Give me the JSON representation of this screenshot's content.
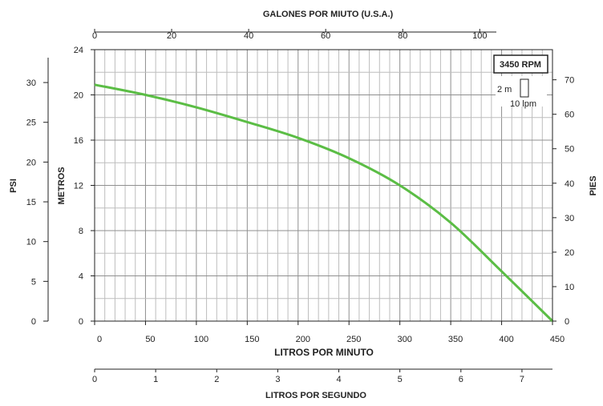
{
  "chart_data": {
    "type": "line",
    "title": "",
    "x": [
      0,
      50,
      100,
      150,
      200,
      250,
      300,
      350,
      400,
      450
    ],
    "series": [
      {
        "values": [
          20.9,
          20.0,
          18.9,
          17.6,
          16.2,
          14.4,
          12.0,
          8.7,
          4.4,
          0.0
        ]
      }
    ],
    "xlabel": "LITROS POR MINUTO",
    "ylabel": "METROS",
    "xlim": [
      0,
      450
    ],
    "ylim": [
      0,
      24
    ],
    "x_ticks": [
      "0",
      "50",
      "100",
      "150",
      "200",
      "250",
      "300",
      "350",
      "400",
      "450"
    ],
    "y_ticks": [
      "0",
      "4",
      "8",
      "12",
      "16",
      "20",
      "24"
    ],
    "top_axis": {
      "label": "GALONES POR MIUTO (U.S.A.)",
      "ticks": [
        "0",
        "20",
        "40",
        "60",
        "80",
        "100"
      ]
    },
    "left_outer_axis": {
      "label": "PSI",
      "ticks": [
        "0",
        "5",
        "10",
        "15",
        "20",
        "25",
        "30"
      ]
    },
    "right_axis": {
      "label": "PIES",
      "ticks": [
        "0",
        "10",
        "20",
        "30",
        "40",
        "50",
        "60",
        "70"
      ]
    },
    "bottom_outer_axis": {
      "label": "LITROS POR SEGUNDO",
      "ticks": [
        "0",
        "1",
        "2",
        "3",
        "4",
        "5",
        "6",
        "7"
      ]
    },
    "legend": {
      "rpm": "3450 RPM",
      "scale_y": "2 m",
      "scale_x": "10 lpm"
    },
    "grid": true,
    "colors": {
      "curve": "#5bbd45",
      "grid": "#b3b3b3",
      "axis": "#222222"
    }
  }
}
